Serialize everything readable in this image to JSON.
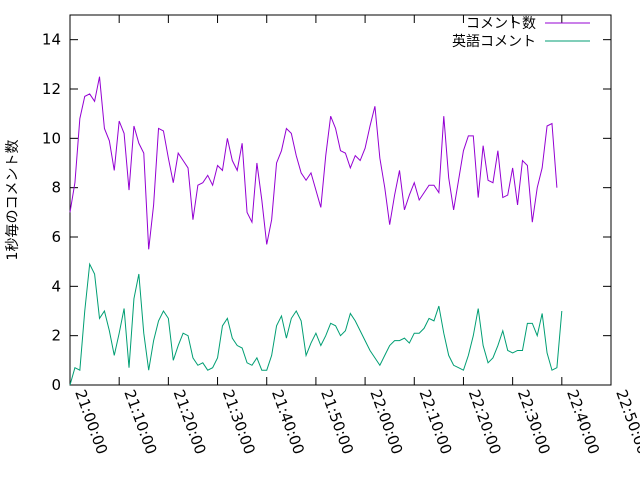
{
  "chart_data": {
    "type": "line",
    "title": "",
    "xlabel": "",
    "ylabel": "1秒毎のコメント数",
    "xlim": [
      "21:00:00",
      "22:50:00"
    ],
    "ylim": [
      0,
      15
    ],
    "y_ticks": [
      0,
      2,
      4,
      6,
      8,
      10,
      12,
      14
    ],
    "x_ticks": [
      "21:00:00",
      "21:10:00",
      "21:20:00",
      "21:30:00",
      "21:40:00",
      "21:50:00",
      "22:00:00",
      "22:10:00",
      "22:20:00",
      "22:30:00",
      "22:40:00",
      "22:50:00"
    ],
    "grid": false,
    "legend_position": "top-right",
    "series": [
      {
        "name": "コメント数",
        "color": "#9400d3",
        "points": [
          [
            "21:00:00",
            7.0
          ],
          [
            "21:01:00",
            8.2
          ],
          [
            "21:02:00",
            10.8
          ],
          [
            "21:03:00",
            11.7
          ],
          [
            "21:04:00",
            11.8
          ],
          [
            "21:05:00",
            11.5
          ],
          [
            "21:06:00",
            12.5
          ],
          [
            "21:07:00",
            10.4
          ],
          [
            "21:08:00",
            9.9
          ],
          [
            "21:09:00",
            8.7
          ],
          [
            "21:10:00",
            10.7
          ],
          [
            "21:11:00",
            10.2
          ],
          [
            "21:12:00",
            7.9
          ],
          [
            "21:13:00",
            10.5
          ],
          [
            "21:14:00",
            9.8
          ],
          [
            "21:15:00",
            9.4
          ],
          [
            "21:16:00",
            5.5
          ],
          [
            "21:17:00",
            7.3
          ],
          [
            "21:18:00",
            10.4
          ],
          [
            "21:19:00",
            10.3
          ],
          [
            "21:20:00",
            9.2
          ],
          [
            "21:21:00",
            8.2
          ],
          [
            "21:22:00",
            9.4
          ],
          [
            "21:23:00",
            9.1
          ],
          [
            "21:24:00",
            8.8
          ],
          [
            "21:25:00",
            6.7
          ],
          [
            "21:26:00",
            8.1
          ],
          [
            "21:27:00",
            8.2
          ],
          [
            "21:28:00",
            8.5
          ],
          [
            "21:29:00",
            8.1
          ],
          [
            "21:30:00",
            8.9
          ],
          [
            "21:31:00",
            8.7
          ],
          [
            "21:32:00",
            10.0
          ],
          [
            "21:33:00",
            9.1
          ],
          [
            "21:34:00",
            8.7
          ],
          [
            "21:35:00",
            9.8
          ],
          [
            "21:36:00",
            7.0
          ],
          [
            "21:37:00",
            6.6
          ],
          [
            "21:38:00",
            9.0
          ],
          [
            "21:39:00",
            7.5
          ],
          [
            "21:40:00",
            5.7
          ],
          [
            "21:41:00",
            6.7
          ],
          [
            "21:42:00",
            9.0
          ],
          [
            "21:43:00",
            9.5
          ],
          [
            "21:44:00",
            10.4
          ],
          [
            "21:45:00",
            10.2
          ],
          [
            "21:46:00",
            9.3
          ],
          [
            "21:47:00",
            8.6
          ],
          [
            "21:48:00",
            8.3
          ],
          [
            "21:49:00",
            8.6
          ],
          [
            "21:50:00",
            7.9
          ],
          [
            "21:51:00",
            7.2
          ],
          [
            "21:52:00",
            9.3
          ],
          [
            "21:53:00",
            10.9
          ],
          [
            "21:54:00",
            10.4
          ],
          [
            "21:55:00",
            9.5
          ],
          [
            "21:56:00",
            9.4
          ],
          [
            "21:57:00",
            8.8
          ],
          [
            "21:58:00",
            9.3
          ],
          [
            "21:59:00",
            9.1
          ],
          [
            "22:00:00",
            9.6
          ],
          [
            "22:01:00",
            10.5
          ],
          [
            "22:02:00",
            11.3
          ],
          [
            "22:03:00",
            9.2
          ],
          [
            "22:04:00",
            8.0
          ],
          [
            "22:05:00",
            6.5
          ],
          [
            "22:06:00",
            7.7
          ],
          [
            "22:07:00",
            8.7
          ],
          [
            "22:08:00",
            7.1
          ],
          [
            "22:09:00",
            7.7
          ],
          [
            "22:10:00",
            8.2
          ],
          [
            "22:11:00",
            7.5
          ],
          [
            "22:12:00",
            7.8
          ],
          [
            "22:13:00",
            8.1
          ],
          [
            "22:14:00",
            8.1
          ],
          [
            "22:15:00",
            7.8
          ],
          [
            "22:16:00",
            10.9
          ],
          [
            "22:17:00",
            8.4
          ],
          [
            "22:18:00",
            7.1
          ],
          [
            "22:19:00",
            8.3
          ],
          [
            "22:20:00",
            9.5
          ],
          [
            "22:21:00",
            10.1
          ],
          [
            "22:22:00",
            10.1
          ],
          [
            "22:23:00",
            7.6
          ],
          [
            "22:24:00",
            9.7
          ],
          [
            "22:25:00",
            8.3
          ],
          [
            "22:26:00",
            8.2
          ],
          [
            "22:27:00",
            9.5
          ],
          [
            "22:28:00",
            7.6
          ],
          [
            "22:29:00",
            7.7
          ],
          [
            "22:30:00",
            8.8
          ],
          [
            "22:31:00",
            7.3
          ],
          [
            "22:32:00",
            9.1
          ],
          [
            "22:33:00",
            8.9
          ],
          [
            "22:34:00",
            6.6
          ],
          [
            "22:35:00",
            8.0
          ],
          [
            "22:36:00",
            8.8
          ],
          [
            "22:37:00",
            10.5
          ],
          [
            "22:38:00",
            10.6
          ],
          [
            "22:39:00",
            8.0
          ]
        ]
      },
      {
        "name": "英語コメント",
        "color": "#009e73",
        "points": [
          [
            "21:00:00",
            0.0
          ],
          [
            "21:01:00",
            0.7
          ],
          [
            "21:02:00",
            0.6
          ],
          [
            "21:03:00",
            3.0
          ],
          [
            "21:04:00",
            4.9
          ],
          [
            "21:05:00",
            4.5
          ],
          [
            "21:06:00",
            2.7
          ],
          [
            "21:07:00",
            3.0
          ],
          [
            "21:08:00",
            2.2
          ],
          [
            "21:09:00",
            1.2
          ],
          [
            "21:10:00",
            2.1
          ],
          [
            "21:11:00",
            3.1
          ],
          [
            "21:12:00",
            0.7
          ],
          [
            "21:13:00",
            3.5
          ],
          [
            "21:14:00",
            4.5
          ],
          [
            "21:15:00",
            2.1
          ],
          [
            "21:16:00",
            0.6
          ],
          [
            "21:17:00",
            1.8
          ],
          [
            "21:18:00",
            2.6
          ],
          [
            "21:19:00",
            3.0
          ],
          [
            "21:20:00",
            2.7
          ],
          [
            "21:21:00",
            1.0
          ],
          [
            "21:22:00",
            1.6
          ],
          [
            "21:23:00",
            2.1
          ],
          [
            "21:24:00",
            2.0
          ],
          [
            "21:25:00",
            1.1
          ],
          [
            "21:26:00",
            0.8
          ],
          [
            "21:27:00",
            0.9
          ],
          [
            "21:28:00",
            0.6
          ],
          [
            "21:29:00",
            0.7
          ],
          [
            "21:30:00",
            1.1
          ],
          [
            "21:31:00",
            2.4
          ],
          [
            "21:32:00",
            2.7
          ],
          [
            "21:33:00",
            1.9
          ],
          [
            "21:34:00",
            1.6
          ],
          [
            "21:35:00",
            1.5
          ],
          [
            "21:36:00",
            0.9
          ],
          [
            "21:37:00",
            0.8
          ],
          [
            "21:38:00",
            1.1
          ],
          [
            "21:39:00",
            0.6
          ],
          [
            "21:40:00",
            0.6
          ],
          [
            "21:41:00",
            1.2
          ],
          [
            "21:42:00",
            2.4
          ],
          [
            "21:43:00",
            2.8
          ],
          [
            "21:44:00",
            1.9
          ],
          [
            "21:45:00",
            2.7
          ],
          [
            "21:46:00",
            3.0
          ],
          [
            "21:47:00",
            2.6
          ],
          [
            "21:48:00",
            1.2
          ],
          [
            "21:49:00",
            1.7
          ],
          [
            "21:50:00",
            2.1
          ],
          [
            "21:51:00",
            1.6
          ],
          [
            "21:52:00",
            2.0
          ],
          [
            "21:53:00",
            2.5
          ],
          [
            "21:54:00",
            2.4
          ],
          [
            "21:55:00",
            2.0
          ],
          [
            "21:56:00",
            2.2
          ],
          [
            "21:57:00",
            2.9
          ],
          [
            "21:58:00",
            2.6
          ],
          [
            "21:59:00",
            2.2
          ],
          [
            "22:00:00",
            1.8
          ],
          [
            "22:01:00",
            1.4
          ],
          [
            "22:02:00",
            1.1
          ],
          [
            "22:03:00",
            0.8
          ],
          [
            "22:04:00",
            1.2
          ],
          [
            "22:05:00",
            1.6
          ],
          [
            "22:06:00",
            1.8
          ],
          [
            "22:07:00",
            1.8
          ],
          [
            "22:08:00",
            1.9
          ],
          [
            "22:09:00",
            1.7
          ],
          [
            "22:10:00",
            2.1
          ],
          [
            "22:11:00",
            2.1
          ],
          [
            "22:12:00",
            2.3
          ],
          [
            "22:13:00",
            2.7
          ],
          [
            "22:14:00",
            2.6
          ],
          [
            "22:15:00",
            3.2
          ],
          [
            "22:16:00",
            2.1
          ],
          [
            "22:17:00",
            1.2
          ],
          [
            "22:18:00",
            0.8
          ],
          [
            "22:19:00",
            0.7
          ],
          [
            "22:20:00",
            0.6
          ],
          [
            "22:21:00",
            1.2
          ],
          [
            "22:22:00",
            2.0
          ],
          [
            "22:23:00",
            3.1
          ],
          [
            "22:24:00",
            1.6
          ],
          [
            "22:25:00",
            0.9
          ],
          [
            "22:26:00",
            1.1
          ],
          [
            "22:27:00",
            1.6
          ],
          [
            "22:28:00",
            2.2
          ],
          [
            "22:29:00",
            1.4
          ],
          [
            "22:30:00",
            1.3
          ],
          [
            "22:31:00",
            1.4
          ],
          [
            "22:32:00",
            1.4
          ],
          [
            "22:33:00",
            2.5
          ],
          [
            "22:34:00",
            2.5
          ],
          [
            "22:35:00",
            2.0
          ],
          [
            "22:36:00",
            2.9
          ],
          [
            "22:37:00",
            1.3
          ],
          [
            "22:38:00",
            0.6
          ],
          [
            "22:39:00",
            0.7
          ],
          [
            "22:40:00",
            3.0
          ]
        ]
      }
    ]
  }
}
